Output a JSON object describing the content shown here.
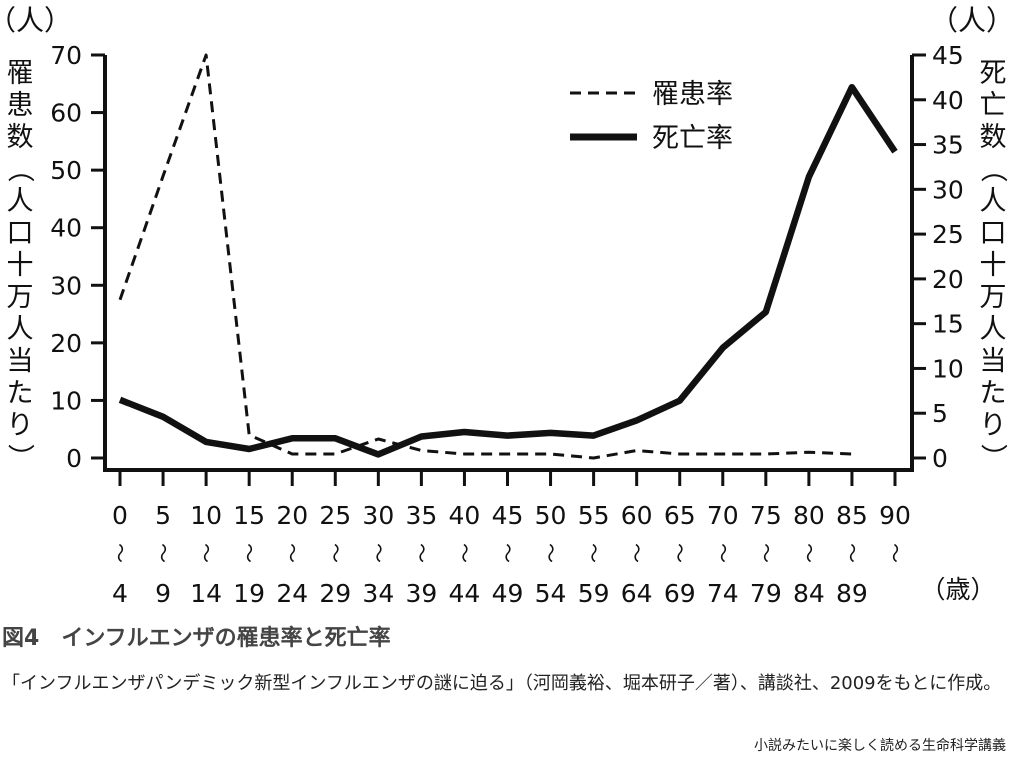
{
  "chart_data": {
    "type": "line",
    "categories": [
      {
        "top": "0",
        "bottom": "4"
      },
      {
        "top": "5",
        "bottom": "9"
      },
      {
        "top": "10",
        "bottom": "14"
      },
      {
        "top": "15",
        "bottom": "19"
      },
      {
        "top": "20",
        "bottom": "24"
      },
      {
        "top": "25",
        "bottom": "29"
      },
      {
        "top": "30",
        "bottom": "34"
      },
      {
        "top": "35",
        "bottom": "39"
      },
      {
        "top": "40",
        "bottom": "44"
      },
      {
        "top": "45",
        "bottom": "49"
      },
      {
        "top": "50",
        "bottom": "54"
      },
      {
        "top": "55",
        "bottom": "59"
      },
      {
        "top": "60",
        "bottom": "64"
      },
      {
        "top": "65",
        "bottom": "69"
      },
      {
        "top": "70",
        "bottom": "74"
      },
      {
        "top": "75",
        "bottom": "79"
      },
      {
        "top": "80",
        "bottom": "84"
      },
      {
        "top": "85",
        "bottom": "89"
      },
      {
        "top": "90",
        "bottom": ""
      }
    ],
    "range_mark": "〜",
    "x_unit": "（歳）",
    "left_axis": {
      "unit": "（人）",
      "label": "罹患数（人口十万人当たり）",
      "ylim": [
        0,
        70
      ],
      "ticks": [
        0,
        10,
        20,
        30,
        40,
        50,
        60,
        70
      ]
    },
    "right_axis": {
      "unit": "（人）",
      "label": "死亡数（人口十万人当たり）",
      "ylim": [
        0,
        45
      ],
      "ticks": [
        0,
        5,
        10,
        15,
        20,
        25,
        30,
        35,
        40,
        45
      ]
    },
    "series": [
      {
        "name": "罹患率",
        "axis": "left",
        "style": "dashed",
        "values": [
          27.5,
          49,
          70,
          4,
          0.7,
          0.7,
          3.3,
          1.3,
          0.7,
          0.7,
          0.7,
          0,
          1.3,
          0.7,
          0.7,
          0.7,
          1,
          0.7,
          null
        ]
      },
      {
        "name": "死亡率",
        "axis": "right",
        "style": "solid",
        "values": [
          6.5,
          4.6,
          1.8,
          1,
          2.2,
          2.2,
          0.4,
          2.4,
          2.9,
          2.5,
          2.8,
          2.5,
          4.2,
          6.4,
          12.3,
          16.3,
          31.4,
          41.4,
          34.2
        ]
      }
    ],
    "legend_position": "top-right",
    "grid": false
  },
  "caption": {
    "figure_label": "図4",
    "title": "インフルエンザの罹患率と死亡率",
    "source": "「インフルエンザパンデミック新型インフルエンザの謎に迫る」（河岡義裕、堀本研子／著）、講談社、2009をもとに作成。"
  },
  "credit": "小説みたいに楽しく読める生命科学講義",
  "colors": {
    "line": "#111111",
    "caption_title": "#444444",
    "background": "#ffffff"
  }
}
